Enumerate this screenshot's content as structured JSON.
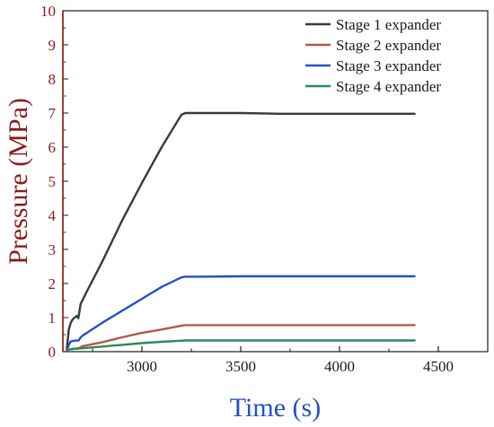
{
  "chart_data": {
    "type": "line",
    "xlabel": "Time (s)",
    "ylabel": "Pressure (MPa)",
    "xlim": [
      2600,
      4750
    ],
    "ylim": [
      0,
      10
    ],
    "xticks": [
      3000,
      3500,
      4000,
      4500
    ],
    "yticks": [
      0,
      1,
      2,
      3,
      4,
      5,
      6,
      7,
      8,
      9,
      10
    ],
    "x_tick_labels": [
      "3000",
      "3500",
      "4000",
      "4500"
    ],
    "y_tick_labels": [
      "0",
      "1",
      "2",
      "3",
      "4",
      "5",
      "6",
      "7",
      "8",
      "9",
      "10"
    ],
    "legend_position": "top-right",
    "grid": false,
    "axis_color": "#8b1a1a",
    "series": [
      {
        "name": "Stage 1 expander",
        "color": "#3a3a3a",
        "x": [
          2620,
          2625,
          2630,
          2640,
          2650,
          2660,
          2670,
          2678,
          2690,
          2720,
          2800,
          2900,
          3000,
          3100,
          3200,
          3220,
          3300,
          3500,
          3700,
          3900,
          4100,
          4300,
          4380
        ],
        "y": [
          0.1,
          0.35,
          0.65,
          0.85,
          0.95,
          1.0,
          1.05,
          0.98,
          1.4,
          1.75,
          2.65,
          3.85,
          4.95,
          6.0,
          6.95,
          7.0,
          7.0,
          7.0,
          6.98,
          6.98,
          6.98,
          6.98,
          6.98
        ]
      },
      {
        "name": "Stage 2 expander",
        "color": "#b05a48",
        "x": [
          2620,
          2650,
          2680,
          2700,
          2800,
          2900,
          3000,
          3100,
          3200,
          3220,
          3300,
          3500,
          3700,
          3900,
          4100,
          4380
        ],
        "y": [
          0.05,
          0.08,
          0.1,
          0.16,
          0.28,
          0.42,
          0.55,
          0.65,
          0.76,
          0.78,
          0.78,
          0.78,
          0.78,
          0.78,
          0.78,
          0.78
        ]
      },
      {
        "name": "Stage 3 expander",
        "color": "#2350c8",
        "x": [
          2620,
          2630,
          2640,
          2660,
          2680,
          2690,
          2700,
          2800,
          2900,
          3000,
          3100,
          3200,
          3220,
          3300,
          3500,
          3700,
          3900,
          4100,
          4380
        ],
        "y": [
          0.05,
          0.2,
          0.3,
          0.32,
          0.33,
          0.42,
          0.47,
          0.85,
          1.2,
          1.55,
          1.9,
          2.18,
          2.2,
          2.2,
          2.21,
          2.21,
          2.21,
          2.21,
          2.21
        ]
      },
      {
        "name": "Stage 4 expander",
        "color": "#2a8a5a",
        "x": [
          2620,
          2650,
          2680,
          2700,
          2800,
          2900,
          3000,
          3100,
          3200,
          3220,
          3300,
          3500,
          3700,
          3900,
          4100,
          4380
        ],
        "y": [
          0.05,
          0.08,
          0.09,
          0.1,
          0.15,
          0.2,
          0.25,
          0.29,
          0.32,
          0.33,
          0.33,
          0.33,
          0.33,
          0.33,
          0.33,
          0.33
        ]
      }
    ]
  }
}
